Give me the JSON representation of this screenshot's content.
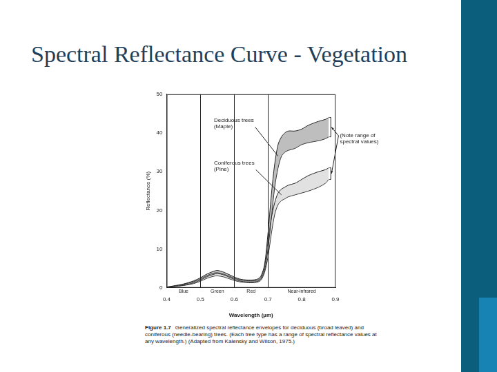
{
  "chart_data": {
    "type": "line",
    "title": "Spectral Reflectance Curve - Vegetation",
    "figure": "Figure 1.7",
    "caption": "Generalized spectral reflectance envelopes for deciduous (broad leaved) and coniferous (needle-bearing) trees. (Each tree type has a range of spectral reflectance values at any wavelength.) (Adapted from Kalensky and Wilson, 1975.)",
    "x_label": "Wavelength (µm)",
    "y_label": "Reflectance (%)",
    "x": [
      0.4,
      0.42,
      0.45,
      0.48,
      0.5,
      0.52,
      0.54,
      0.55,
      0.57,
      0.6,
      0.62,
      0.65,
      0.67,
      0.68,
      0.69,
      0.7,
      0.71,
      0.72,
      0.73,
      0.74,
      0.75,
      0.76,
      0.78,
      0.8,
      0.82,
      0.85,
      0.87,
      0.88
    ],
    "series": [
      {
        "name": "Deciduous trees (Maple)",
        "color": "#222222",
        "values": [
          0.2,
          0.5,
          1.0,
          1.8,
          2.6,
          3.6,
          4.3,
          4.5,
          4.0,
          2.8,
          2.2,
          2.0,
          2.3,
          3.2,
          6,
          14,
          24,
          32,
          37,
          39,
          40,
          40.5,
          40.5,
          41,
          42,
          43,
          43.5,
          44
        ],
        "lower": [
          0.1,
          0.3,
          0.7,
          1.3,
          2.0,
          2.9,
          3.5,
          3.7,
          3.3,
          2.2,
          1.7,
          1.5,
          1.7,
          2.4,
          4.5,
          10,
          18,
          26,
          31,
          34,
          35,
          35.5,
          36,
          37,
          37.5,
          38,
          38.5,
          39
        ],
        "label_x": 0.54,
        "label_y": 44
      },
      {
        "name": "Coniferous trees (Pine)",
        "color": "#222222",
        "values": [
          0.2,
          0.4,
          0.9,
          1.6,
          2.3,
          3.2,
          3.8,
          3.9,
          3.5,
          2.5,
          2.0,
          1.8,
          2.0,
          2.8,
          5.5,
          12,
          18,
          22,
          24.5,
          25.5,
          26,
          26.5,
          27,
          28,
          29,
          30,
          30.5,
          31
        ],
        "lower": [
          0.1,
          0.3,
          0.6,
          1.1,
          1.7,
          2.5,
          3.0,
          3.1,
          2.8,
          1.9,
          1.5,
          1.3,
          1.5,
          2.1,
          4.0,
          8,
          14,
          19,
          21.5,
          22.5,
          23,
          23.5,
          24,
          24.5,
          25,
          26,
          27,
          28
        ],
        "label_x": 0.54,
        "label_y": 33
      }
    ],
    "annotations": [
      {
        "text": "(Note range of\nspectral values)",
        "x": 0.905,
        "y": 40
      }
    ],
    "bands": [
      {
        "name": "Blue",
        "from": 0.4,
        "to": 0.5
      },
      {
        "name": "Green",
        "from": 0.5,
        "to": 0.6
      },
      {
        "name": "Red",
        "from": 0.6,
        "to": 0.7
      },
      {
        "name": "Near-infrared",
        "from": 0.7,
        "to": 0.9
      }
    ],
    "xlim": [
      0.4,
      0.9
    ],
    "xticks": [
      0.4,
      0.5,
      0.6,
      0.7,
      0.8,
      0.9
    ],
    "ylim": [
      0,
      50
    ],
    "yticks": [
      0,
      10,
      20,
      30,
      40,
      50
    ],
    "grid": false
  }
}
